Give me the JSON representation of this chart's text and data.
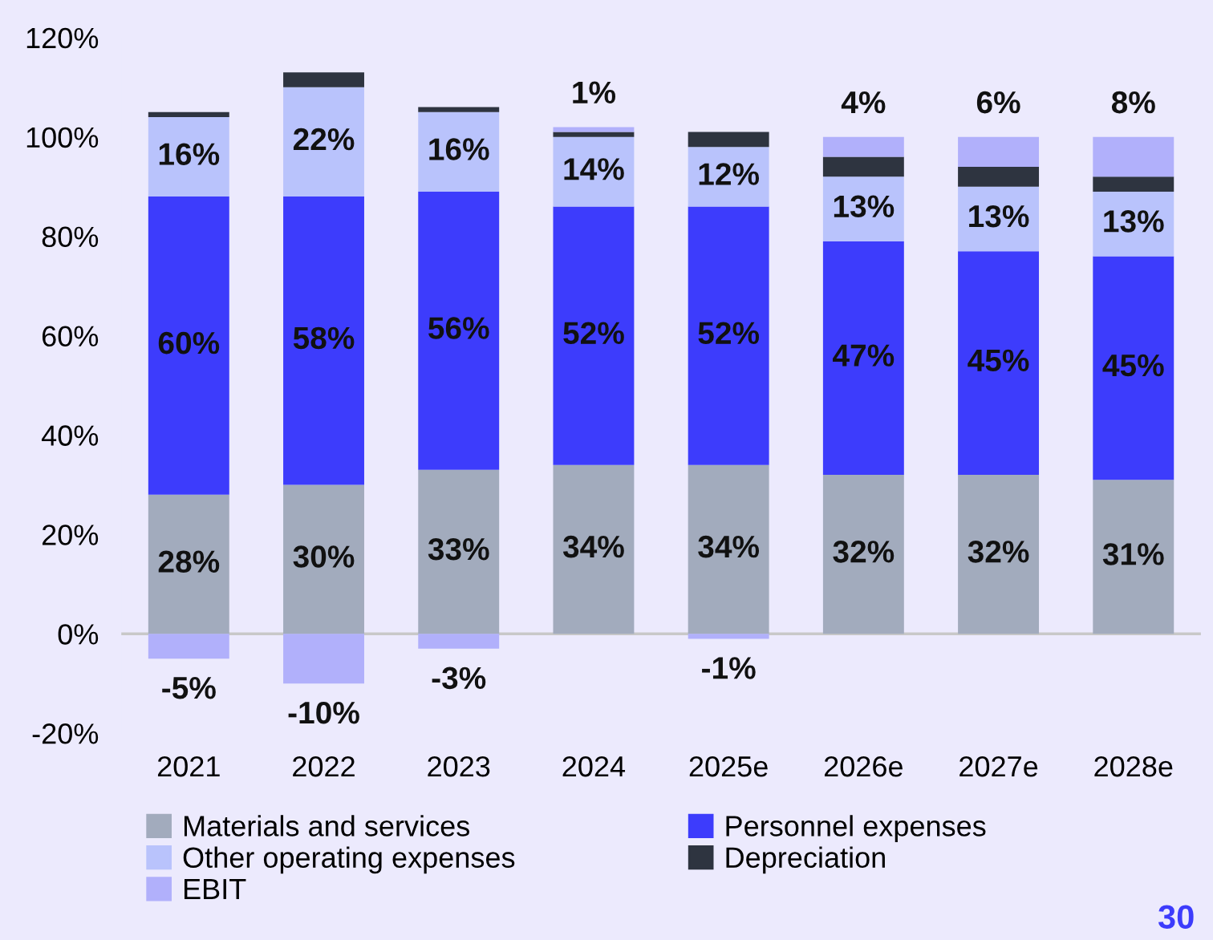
{
  "chart_data": {
    "type": "bar",
    "stacked": true,
    "categories": [
      "2021",
      "2022",
      "2023",
      "2024",
      "2025e",
      "2026e",
      "2027e",
      "2028e"
    ],
    "series": [
      {
        "name": "Materials and services",
        "color": "#a2abbd",
        "values": [
          28,
          30,
          33,
          34,
          34,
          32,
          32,
          31
        ],
        "value_labels": [
          "28%",
          "30%",
          "33%",
          "34%",
          "34%",
          "32%",
          "32%",
          "31%"
        ]
      },
      {
        "name": "Personnel expenses",
        "color": "#3d3cfc",
        "values": [
          60,
          58,
          56,
          52,
          52,
          47,
          45,
          45
        ],
        "value_labels": [
          "60%",
          "58%",
          "56%",
          "52%",
          "52%",
          "47%",
          "45%",
          "45%"
        ]
      },
      {
        "name": "Other operating expenses",
        "color": "#b9c3fc",
        "values": [
          16,
          22,
          16,
          14,
          12,
          13,
          13,
          13
        ],
        "value_labels": [
          "16%",
          "22%",
          "16%",
          "14%",
          "12%",
          "13%",
          "13%",
          "13%"
        ]
      },
      {
        "name": "Depreciation",
        "color": "#2e3440",
        "values": [
          1,
          3,
          1,
          1,
          3,
          4,
          4,
          3
        ]
      },
      {
        "name": "EBIT",
        "color": "#b1b0fb",
        "values": [
          -5,
          -10,
          -3,
          1,
          -1,
          4,
          6,
          8
        ],
        "value_labels": [
          "-5%",
          "-10%",
          "-3%",
          "1%",
          "-1%",
          "4%",
          "6%",
          "8%"
        ]
      }
    ],
    "ylim": [
      -20,
      120
    ],
    "yticks": [
      {
        "value": -20,
        "label": "-20%"
      },
      {
        "value": 0,
        "label": "0%"
      },
      {
        "value": 20,
        "label": "20%"
      },
      {
        "value": 40,
        "label": "40%"
      },
      {
        "value": 60,
        "label": "60%"
      },
      {
        "value": 80,
        "label": "80%"
      },
      {
        "value": 100,
        "label": "100%"
      },
      {
        "value": 120,
        "label": "120%"
      }
    ],
    "ref_lines": [
      {
        "axis": "y",
        "value": 0,
        "color": "#c8c8c8"
      }
    ],
    "legend": "bottom",
    "annotations": [
      "30"
    ]
  }
}
